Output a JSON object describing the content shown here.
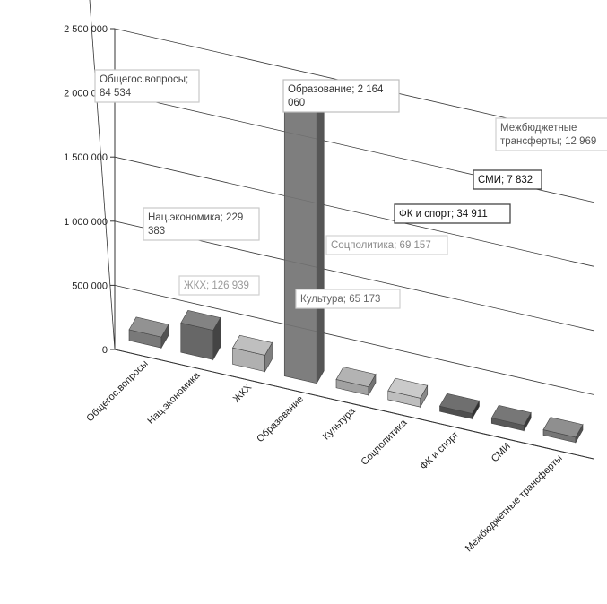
{
  "chart_data": {
    "type": "bar",
    "title": "",
    "xlabel": "",
    "ylabel": "",
    "ylim": [
      0,
      2500000
    ],
    "y_ticks": [
      "0",
      "500 000",
      "1 000 000",
      "1 500 000",
      "2 000 000",
      "2 500 000"
    ],
    "grid": true,
    "three_d": true,
    "categories": [
      "Общегос.вопросы",
      "Нац.экономика",
      "ЖКХ",
      "Образование",
      "Культура",
      "Соцполитика",
      "ФК и спорт",
      "СМИ",
      "Межбюджетные трансферты"
    ],
    "values": [
      84534,
      229383,
      126939,
      2164060,
      65173,
      69157,
      34911,
      7832,
      12969
    ],
    "data_labels": [
      [
        "Общегос.вопросы;",
        "84 534"
      ],
      [
        "Нац.экономика; 229",
        "383"
      ],
      [
        "ЖКХ; 126 939"
      ],
      [
        "Образование; 2 164",
        "060"
      ],
      [
        "Культура; 65 173"
      ],
      [
        "Соцполитика; 69 157"
      ],
      [
        "ФК и спорт; 34 911"
      ],
      [
        "СМИ; 7 832"
      ],
      [
        "Межбюджетные",
        "трансферты; 12 969"
      ]
    ],
    "colors": [
      "#6e6e6e",
      "#5a5a5a",
      "#a9a9a9",
      "#737373",
      "#9a9a9a",
      "#b8b8b8",
      "#3f3f3f",
      "#4a4a4a",
      "#6a6a6a"
    ]
  }
}
